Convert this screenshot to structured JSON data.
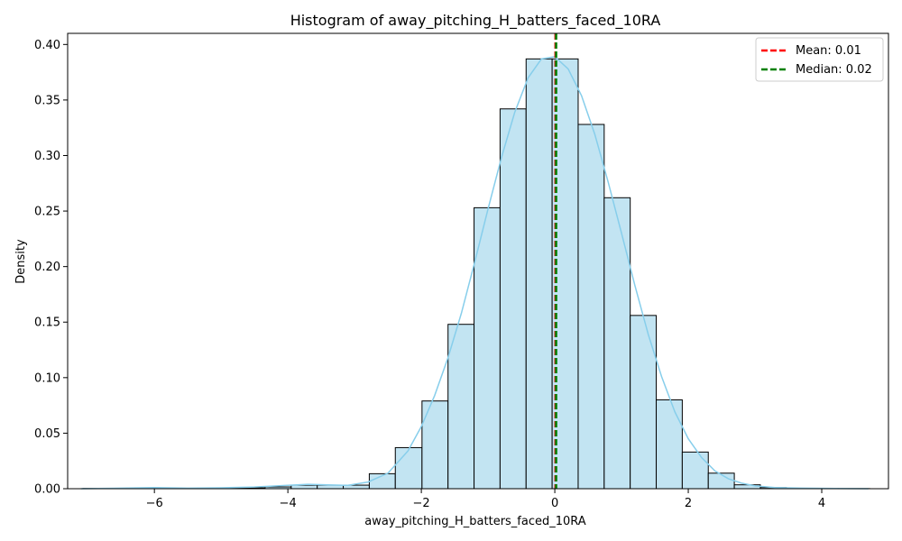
{
  "chart_data": {
    "type": "bar",
    "title": "Histogram of away_pitching_H_batters_faced_10RA",
    "xlabel": "away_pitching_H_batters_faced_10RA",
    "ylabel": "Density",
    "xlim": [
      -7.3,
      5.0
    ],
    "ylim": [
      0,
      0.41
    ],
    "x_ticks": [
      -6,
      -4,
      -2,
      0,
      2,
      4
    ],
    "x_tick_labels": [
      "−6",
      "−4",
      "−2",
      "0",
      "2",
      "4"
    ],
    "y_ticks": [
      0.0,
      0.05,
      0.1,
      0.15,
      0.2,
      0.25,
      0.3,
      0.35,
      0.4
    ],
    "y_tick_labels": [
      "0.00",
      "0.05",
      "0.10",
      "0.15",
      "0.20",
      "0.25",
      "0.30",
      "0.35",
      "0.40"
    ],
    "bin_edges": [
      -7.07,
      -6.68,
      -6.29,
      -5.9,
      -5.51,
      -5.12,
      -4.73,
      -4.34,
      -3.95,
      -3.56,
      -3.17,
      -2.78,
      -2.39,
      -1.99,
      -1.6,
      -1.21,
      -0.82,
      -0.43,
      -0.04,
      0.35,
      0.74,
      1.13,
      1.52,
      1.91,
      2.3,
      2.69,
      3.08,
      3.47,
      3.86,
      4.25,
      4.72
    ],
    "densities": [
      0.0002,
      0.0,
      0.0004,
      0.0,
      0.0002,
      0.0004,
      0.0008,
      0.0016,
      0.0032,
      0.0032,
      0.0032,
      0.0135,
      0.037,
      0.079,
      0.148,
      0.253,
      0.342,
      0.387,
      0.387,
      0.328,
      0.262,
      0.156,
      0.08,
      0.033,
      0.014,
      0.0035,
      0.001,
      0.0004,
      0.0002,
      0.0001
    ],
    "kde": {
      "x": [
        -7.1,
        -6.5,
        -6.0,
        -5.5,
        -5.0,
        -4.5,
        -4.0,
        -3.7,
        -3.4,
        -3.1,
        -2.8,
        -2.5,
        -2.2,
        -2.0,
        -1.8,
        -1.6,
        -1.4,
        -1.2,
        -1.0,
        -0.8,
        -0.6,
        -0.4,
        -0.2,
        0.0,
        0.2,
        0.4,
        0.6,
        0.8,
        1.0,
        1.2,
        1.4,
        1.6,
        1.8,
        2.0,
        2.2,
        2.4,
        2.6,
        2.8,
        3.0,
        3.3,
        3.7,
        4.2,
        4.7
      ],
      "y": [
        0.0,
        0.0005,
        0.001,
        0.0005,
        0.0008,
        0.0015,
        0.003,
        0.004,
        0.0035,
        0.003,
        0.006,
        0.014,
        0.034,
        0.056,
        0.084,
        0.118,
        0.158,
        0.204,
        0.252,
        0.298,
        0.339,
        0.37,
        0.387,
        0.389,
        0.378,
        0.354,
        0.319,
        0.276,
        0.23,
        0.183,
        0.139,
        0.101,
        0.069,
        0.045,
        0.028,
        0.016,
        0.009,
        0.005,
        0.0025,
        0.001,
        0.0005,
        0.0002,
        0.0
      ]
    },
    "mean": 0.01,
    "median": 0.02,
    "legend_position": "top-right",
    "legend": [
      {
        "label": "Mean: 0.01",
        "color": "#ff0000",
        "style": "dashed"
      },
      {
        "label": "Median: 0.02",
        "color": "#008000",
        "style": "dashed"
      }
    ],
    "colors": {
      "bar_fill": "#c2e4f2",
      "bar_edge": "#000000",
      "kde_line": "#87ceeb",
      "mean_line": "#ff0000",
      "median_line": "#008000"
    },
    "grid": false
  }
}
